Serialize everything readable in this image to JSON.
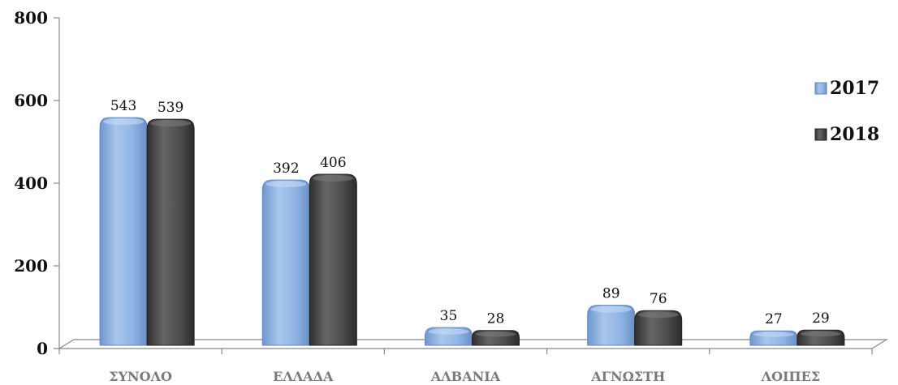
{
  "chart_data": {
    "type": "bar",
    "categories": [
      "ΣΥΝΟΛΟ",
      "ΕΛΛΑΔΑ",
      "ΑΛΒΑΝΙΑ",
      "ΑΓΝΩΣΤΗ",
      "ΛΟΙΠΕΣ"
    ],
    "series": [
      {
        "name": "2017",
        "values": [
          543,
          392,
          35,
          89,
          27
        ],
        "color": "#8fb4e3"
      },
      {
        "name": "2018",
        "values": [
          539,
          406,
          28,
          76,
          29
        ],
        "color": "#4d4d4d"
      }
    ],
    "y_ticks": [
      0,
      200,
      400,
      600,
      800
    ],
    "ylim": [
      0,
      800
    ],
    "title": "",
    "xlabel": "",
    "ylabel": "",
    "legend_position": "right",
    "grid": false,
    "data_labels": true,
    "style": "3d-rounded-bars"
  }
}
